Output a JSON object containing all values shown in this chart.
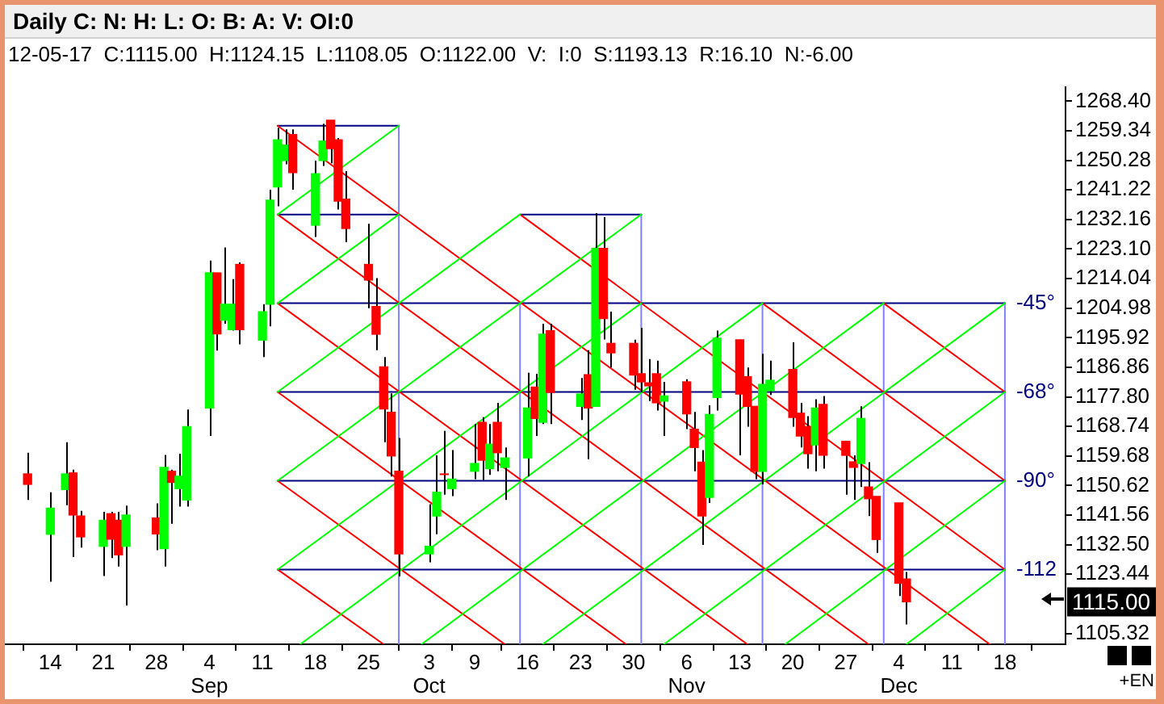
{
  "chart_data": {
    "type": "candlestick",
    "title": "Daily C: N: H: L: O: B: A: V: OI:0",
    "subtitle": "12-05-17  C:1115.00  H:1124.15  L:1108.05  O:1122.00  V:  I:0  S:1193.13  R:16.10  N:-6.00",
    "x": [
      "--08-11",
      "--08-14",
      "--08-16",
      "--08-17",
      "--08-18",
      "--08-21",
      "--08-22",
      "--08-23",
      "--08-24",
      "--08-28",
      "--08-29",
      "--08-30",
      "--08-31",
      "--09-01",
      "--09-04",
      "--09-05",
      "--09-06",
      "--09-07",
      "--09-08",
      "--09-11",
      "--09-12",
      "--09-13",
      "--09-14",
      "--09-15",
      "--09-18",
      "--09-19",
      "--09-20",
      "--09-21",
      "--09-22",
      "--09-25",
      "--09-26",
      "--09-27",
      "--09-28",
      "--09-29",
      "--10-03",
      "--10-04",
      "--10-05",
      "--10-06",
      "--10-09",
      "--10-10",
      "--10-11",
      "--10-12",
      "--10-13",
      "--10-16",
      "--10-17",
      "--10-18",
      "--10-19",
      "--10-23",
      "--10-24",
      "--10-25",
      "--10-26",
      "--10-27",
      "--10-30",
      "--10-31",
      "--11-01",
      "--11-02",
      "--11-03",
      "--11-06",
      "--11-07",
      "--11-08",
      "--11-09",
      "--11-10",
      "--11-13",
      "--11-14",
      "--11-15",
      "--11-16",
      "--11-17",
      "--11-20",
      "--11-21",
      "--11-22",
      "--11-23",
      "--11-24",
      "--11-27",
      "--11-28",
      "--11-29",
      "--11-30",
      "--12-01",
      "--12-04",
      "--12-05"
    ],
    "ohlc": [
      [
        1154.2,
        1160.7,
        1146.2,
        1151.0
      ],
      [
        1135.7,
        1148.6,
        1121.2,
        1143.7
      ],
      [
        1149.4,
        1163.9,
        1144.6,
        1154.2
      ],
      [
        1154.5,
        1155.5,
        1128.7,
        1141.6
      ],
      [
        1141.3,
        1142.9,
        1131.6,
        1134.9
      ],
      [
        1132.0,
        1142.6,
        1122.9,
        1140.0
      ],
      [
        1142.0,
        1142.6,
        1128.4,
        1134.2
      ],
      [
        1140.0,
        1142.6,
        1125.8,
        1129.4
      ],
      [
        1132.0,
        1144.5,
        1113.9,
        1141.6
      ],
      [
        1140.7,
        1145.2,
        1130.8,
        1135.8
      ],
      [
        1131.3,
        1160.0,
        1125.8,
        1156.2
      ],
      [
        1155.0,
        1155.5,
        1138.9,
        1151.6
      ],
      [
        1149.7,
        1160.4,
        1144.2,
        1153.5
      ],
      [
        1146.2,
        1173.9,
        1144.2,
        1168.7
      ],
      [
        1174.4,
        1219.6,
        1165.8,
        1215.8
      ],
      [
        1215.8,
        1215.8,
        1192.0,
        1197.1
      ],
      [
        1201.3,
        1223.6,
        1200.2,
        1206.2
      ],
      [
        1198.4,
        1213.9,
        1198.1,
        1206.2
      ],
      [
        1218.4,
        1219.0,
        1193.9,
        1198.4
      ],
      [
        1195.2,
        1206.2,
        1190.0,
        1203.9
      ],
      [
        1206.2,
        1241.3,
        1199.4,
        1238.1
      ],
      [
        1242.1,
        1260.3,
        1236.2,
        1256.6
      ],
      [
        1250.2,
        1259.8,
        1249.1,
        1255.0
      ],
      [
        1258.2,
        1259.8,
        1241.3,
        1246.5
      ],
      [
        1230.4,
        1250.2,
        1226.8,
        1246.2
      ],
      [
        1250.2,
        1261.5,
        1248.6,
        1256.2
      ],
      [
        1262.6,
        1262.6,
        1249.4,
        1253.9
      ],
      [
        1256.6,
        1257.1,
        1235.2,
        1237.8
      ],
      [
        1238.4,
        1247.0,
        1225.2,
        1229.4
      ],
      [
        1218.4,
        1230.8,
        1205.0,
        1213.6
      ],
      [
        1205.5,
        1214.2,
        1192.1,
        1197.0
      ],
      [
        1187.0,
        1190.0,
        1163.9,
        1174.1
      ],
      [
        1173.1,
        1178.9,
        1153.4,
        1159.7
      ],
      [
        1155.0,
        1165.2,
        1122.8,
        1129.7
      ],
      [
        1129.7,
        1144.9,
        1127.1,
        1132.0
      ],
      [
        1141.3,
        1159.9,
        1135.7,
        1148.6
      ],
      [
        1154.2,
        1167.4,
        1147.8,
        1154.0
      ],
      [
        1149.7,
        1161.5,
        1147.4,
        1152.6
      ],
      [
        1155.0,
        1169.5,
        1152.6,
        1157.4
      ],
      [
        1170.0,
        1171.6,
        1152.3,
        1158.4
      ],
      [
        1155.8,
        1169.5,
        1153.9,
        1163.3
      ],
      [
        1170.0,
        1176.0,
        1155.0,
        1160.7
      ],
      [
        1156.2,
        1162.3,
        1146.2,
        1159.1
      ],
      [
        1159.1,
        1185.2,
        1153.4,
        1174.4
      ],
      [
        1180.8,
        1184.9,
        1165.8,
        1171.2
      ],
      [
        1170.0,
        1200.2,
        1169.5,
        1197.0
      ],
      [
        1198.1,
        1200.2,
        1169.5,
        1179.2
      ],
      [
        1174.9,
        1183.6,
        1170.7,
        1178.7
      ],
      [
        1184.6,
        1192.1,
        1158.7,
        1174.4
      ],
      [
        1174.9,
        1234.1,
        1174.9,
        1223.3
      ],
      [
        1223.3,
        1232.9,
        1195.4,
        1201.8
      ],
      [
        1194.2,
        1203.9,
        1186.8,
        1191.3
      ],
      [
        1194.2,
        1195.3,
        1180.0,
        1184.5
      ],
      [
        1184.9,
        1199.0,
        1179.2,
        1182.4
      ],
      [
        1182.1,
        1189.4,
        1176.5,
        1181.2
      ],
      [
        1184.9,
        1188.9,
        1173.6,
        1176.0
      ],
      [
        1176.5,
        1182.4,
        1165.8,
        1178.1
      ],
      [
        1182.4,
        1183.2,
        1167.9,
        1172.6
      ],
      [
        1167.9,
        1173.2,
        1155.0,
        1162.3
      ],
      [
        1157.8,
        1161.5,
        1132.4,
        1141.3
      ],
      [
        1147.0,
        1175.2,
        1145.3,
        1172.4
      ],
      [
        1177.6,
        1198.1,
        1173.6,
        1195.8
      ],
      [
        1195.3,
        1195.3,
        1159.9,
        1178.7
      ],
      [
        1184.0,
        1186.8,
        1168.7,
        1174.9
      ],
      [
        1174.9,
        1174.9,
        1152.6,
        1155.0
      ],
      [
        1155.0,
        1191.0,
        1151.0,
        1181.6
      ],
      [
        1179.7,
        1188.9,
        1178.4,
        1182.9
      ],
      [
        1186.2,
        1194.5,
        1168.7,
        1171.5
      ],
      [
        1172.8,
        1176.0,
        1162.3,
        1165.8
      ],
      [
        1168.7,
        1171.9,
        1155.8,
        1160.4
      ],
      [
        1163.1,
        1177.1,
        1155.0,
        1174.4
      ],
      [
        1175.5,
        1178.1,
        1155.8,
        1159.9
      ],
      [
        1164.2,
        1164.2,
        1147.8,
        1159.9
      ],
      [
        1157.9,
        1159.9,
        1146.2,
        1156.2
      ],
      [
        1157.4,
        1174.9,
        1150.2,
        1171.2
      ],
      [
        1150.2,
        1157.8,
        1141.3,
        1146.6
      ],
      [
        1147.3,
        1147.3,
        1130.0,
        1134.1
      ],
      [
        1145.3,
        1145.3,
        1116.8,
        1120.7
      ],
      [
        1122.0,
        1124.15,
        1108.05,
        1115.0
      ]
    ],
    "colors": [
      "#ff0000",
      "#00ff00",
      "#00ff00",
      "#ff0000",
      "#ff0000",
      "#00ff00",
      "#ff0000",
      "#ff0000",
      "#00ff00",
      "#ff0000",
      "#00ff00",
      "#ff0000",
      "#00ff00",
      "#00ff00",
      "#00ff00",
      "#ff0000",
      "#00ff00",
      "#00ff00",
      "#ff0000",
      "#00ff00",
      "#00ff00",
      "#00ff00",
      "#00ff00",
      "#ff0000",
      "#00ff00",
      "#00ff00",
      "#ff0000",
      "#ff0000",
      "#ff0000",
      "#ff0000",
      "#ff0000",
      "#ff0000",
      "#ff0000",
      "#ff0000",
      "#00ff00",
      "#00ff00",
      "#ff0000",
      "#00ff00",
      "#00ff00",
      "#ff0000",
      "#00ff00",
      "#ff0000",
      "#00ff00",
      "#00ff00",
      "#ff0000",
      "#00ff00",
      "#ff0000",
      "#00ff00",
      "#ff0000",
      "#00ff00",
      "#ff0000",
      "#ff0000",
      "#ff0000",
      "#ff0000",
      "#ff0000",
      "#ff0000",
      "#00ff00",
      "#ff0000",
      "#ff0000",
      "#ff0000",
      "#00ff00",
      "#00ff00",
      "#ff0000",
      "#ff0000",
      "#ff0000",
      "#00ff00",
      "#00ff00",
      "#ff0000",
      "#ff0000",
      "#ff0000",
      "#00ff00",
      "#ff0000",
      "#ff0000",
      "#ff0000",
      "#00ff00",
      "#ff0000",
      "#ff0000",
      "#ff0000",
      "#ff0000"
    ],
    "series": [
      {
        "type": "line",
        "color": "#00ff00",
        "x": [
          "--09-13",
          "--09-29"
        ],
        "values": [
          1233.7,
          1260.9
        ]
      },
      {
        "type": "line",
        "color": "#00ff00",
        "x": [
          "--09-13",
          "--09-29"
        ],
        "values": [
          1206.5,
          1233.7
        ]
      },
      {
        "type": "line",
        "color": "#00ff00",
        "x": [
          "--09-13",
          "--10-15"
        ],
        "values": [
          1179.3,
          1233.7
        ]
      },
      {
        "type": "line",
        "color": "#00ff00",
        "x": [
          "--09-13",
          "--10-31"
        ],
        "values": [
          1152.1,
          1233.7
        ]
      },
      {
        "type": "line",
        "color": "#00ff00",
        "x": [
          "--09-13",
          "--10-31"
        ],
        "values": [
          1124.9,
          1206.5
        ]
      },
      {
        "type": "line",
        "color": "#00ff00",
        "x": [
          "--09-16",
          "--11-16"
        ],
        "values": [
          1102,
          1206.5
        ]
      },
      {
        "type": "line",
        "color": "#00ff00",
        "x": [
          "--10-02",
          "--12-02"
        ],
        "values": [
          1102,
          1206.5
        ]
      },
      {
        "type": "line",
        "color": "#00ff00",
        "x": [
          "--10-18",
          "--12-18"
        ],
        "values": [
          1102,
          1206.5
        ]
      },
      {
        "type": "line",
        "color": "#00ff00",
        "x": [
          "--11-03",
          "--12-18"
        ],
        "values": [
          1102,
          1179.3
        ]
      },
      {
        "type": "line",
        "color": "#00ff00",
        "x": [
          "--11-19",
          "--12-18"
        ],
        "values": [
          1102,
          1152.1
        ]
      },
      {
        "type": "line",
        "color": "#00ff00",
        "x": [
          "--12-05",
          "--12-18"
        ],
        "values": [
          1102,
          1124.9
        ]
      },
      {
        "type": "line",
        "color": "#ff0000",
        "x": [
          "--09-13",
          "--09-27"
        ],
        "values": [
          1124.9,
          1102
        ]
      },
      {
        "type": "line",
        "color": "#ff0000",
        "x": [
          "--09-13",
          "--10-13"
        ],
        "values": [
          1152.1,
          1102
        ]
      },
      {
        "type": "line",
        "color": "#ff0000",
        "x": [
          "--09-13",
          "--10-29"
        ],
        "values": [
          1179.3,
          1102
        ]
      },
      {
        "type": "line",
        "color": "#ff0000",
        "x": [
          "--09-13",
          "--11-14"
        ],
        "values": [
          1206.5,
          1102
        ]
      },
      {
        "type": "line",
        "color": "#ff0000",
        "x": [
          "--09-13",
          "--11-30"
        ],
        "values": [
          1233.7,
          1102
        ]
      },
      {
        "type": "line",
        "color": "#ff0000",
        "x": [
          "--09-13",
          "--12-16"
        ],
        "values": [
          1260.9,
          1102
        ]
      },
      {
        "type": "line",
        "color": "#ff0000",
        "x": [
          "--10-15",
          "--12-18"
        ],
        "values": [
          1233.7,
          1124.9
        ]
      },
      {
        "type": "line",
        "color": "#ff0000",
        "x": [
          "--11-16",
          "--12-18"
        ],
        "values": [
          1206.5,
          1152.1
        ]
      },
      {
        "type": "line",
        "color": "#ff0000",
        "x": [
          "--12-02",
          "--12-18"
        ],
        "values": [
          1206.5,
          1179.3
        ]
      },
      {
        "type": "line",
        "color": "#000080",
        "x": [
          "--09-13",
          "--09-29"
        ],
        "values": [
          1260.9,
          1260.9
        ]
      },
      {
        "type": "line",
        "color": "#000080",
        "x": [
          "--09-13",
          "--09-29"
        ],
        "values": [
          1233.7,
          1233.7
        ]
      },
      {
        "type": "line",
        "color": "#000080",
        "x": [
          "--10-15",
          "--10-31"
        ],
        "values": [
          1233.7,
          1233.7
        ]
      },
      {
        "type": "line",
        "color": "#000080",
        "x": [
          "--09-13",
          "--12-18"
        ],
        "values": [
          1206.5,
          1206.5
        ]
      },
      {
        "type": "line",
        "color": "#000080",
        "x": [
          "--09-13",
          "--12-18"
        ],
        "values": [
          1179.3,
          1179.3
        ]
      },
      {
        "type": "line",
        "color": "#000080",
        "x": [
          "--09-13",
          "--12-18"
        ],
        "values": [
          1152.1,
          1152.1
        ]
      },
      {
        "type": "line",
        "color": "#000080",
        "x": [
          "--09-13",
          "--12-18"
        ],
        "values": [
          1124.9,
          1124.9
        ]
      },
      {
        "type": "line",
        "color": "#8080ff",
        "x": [
          "--09-29",
          "--09-29"
        ],
        "values": [
          1102,
          1260.9
        ]
      },
      {
        "type": "line",
        "color": "#8080ff",
        "x": [
          "--10-15",
          "--10-15"
        ],
        "values": [
          1102,
          1206.5
        ]
      },
      {
        "type": "line",
        "color": "#8080ff",
        "x": [
          "--10-31",
          "--10-31"
        ],
        "values": [
          1102,
          1233.7
        ]
      },
      {
        "type": "line",
        "color": "#8080ff",
        "x": [
          "--11-16",
          "--11-16"
        ],
        "values": [
          1102,
          1206.5
        ]
      },
      {
        "type": "line",
        "color": "#8080ff",
        "x": [
          "--12-02",
          "--12-02"
        ],
        "values": [
          1102,
          1206.5
        ]
      },
      {
        "type": "line",
        "color": "#8080ff",
        "x": [
          "--12-18",
          "--12-18"
        ],
        "values": [
          1102,
          1206.5
        ]
      }
    ],
    "xlim": [
      "--08-08",
      "--12-26"
    ],
    "xticks": [
      {
        "value": "--08-14",
        "label": "14"
      },
      {
        "value": "--08-21",
        "label": "21"
      },
      {
        "value": "--08-28",
        "label": "28"
      },
      {
        "value": "--09-04",
        "label": "4\nSep"
      },
      {
        "value": "--09-11",
        "label": "11"
      },
      {
        "value": "--09-18",
        "label": "18"
      },
      {
        "value": "--09-25",
        "label": "25"
      },
      {
        "value": "--10-03",
        "label": "3\nOct"
      },
      {
        "value": "--10-09",
        "label": "9"
      },
      {
        "value": "--10-16",
        "label": "16"
      },
      {
        "value": "--10-23",
        "label": "23"
      },
      {
        "value": "--10-30",
        "label": "30"
      },
      {
        "value": "--11-06",
        "label": "6\nNov"
      },
      {
        "value": "--11-13",
        "label": "13"
      },
      {
        "value": "--11-20",
        "label": "20"
      },
      {
        "value": "--11-27",
        "label": "27"
      },
      {
        "value": "--12-04",
        "label": "4\nDec"
      },
      {
        "value": "--12-11",
        "label": "11"
      },
      {
        "value": "--12-18",
        "label": "18"
      }
    ],
    "ylim": [
      1102,
      1272.8
    ],
    "yticks": [
      1105.32,
      1123.44,
      {
        "value": 1132.5,
        "label": "1132.50"
      },
      1141.56,
      1150.62,
      1159.68,
      1168.74,
      {
        "value": 1177.8,
        "label": "1177.80"
      },
      1186.86,
      1195.92,
      1204.98,
      1214.04,
      {
        "value": 1223.1,
        "label": "1223.10"
      },
      1232.16,
      1241.22,
      1250.28,
      1259.34,
      {
        "value": 1268.4,
        "label": "1268.40"
      }
    ],
    "annotations": [
      "1115.00",
      {
        "text": "-45°",
        "x": "--12-18",
        "y": 1206.5
      },
      {
        "text": "-68°",
        "x": "--12-18",
        "y": 1179.3
      },
      {
        "text": "-90°",
        "x": "--12-18",
        "y": 1152.1
      },
      {
        "text": "-112",
        "x": "--12-18",
        "y": 1124.9
      },
      "+EN"
    ]
  }
}
